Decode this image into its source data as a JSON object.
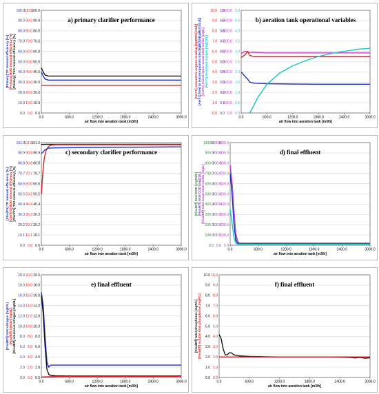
{
  "colors": {
    "blue": "#1f2fc7",
    "red": "#d62020",
    "black": "#111111",
    "grey": "#8a8a8a",
    "cyan": "#16c4c4",
    "magenta": "#cc33cc",
    "green": "#2e8b2e",
    "purple": "#7a3fa0",
    "grid": "#d8d8d8"
  },
  "chart_data": [
    {
      "id": "a",
      "type": "line",
      "title": "a) primary clarifier performance",
      "xlabel": "air flow into aeration tank [m3/h]",
      "xlim": [
        0,
        3000
      ],
      "xticks": [
        "0.0",
        "600.0",
        "1200.0",
        "1800.0",
        "2400.0",
        "3000.0"
      ],
      "ylabels": [
        {
          "text": "[Primary] TP removal efficiency [%]",
          "color": "#1f2fc7"
        },
        {
          "text": "[Primary] BOD removal efficiency [%]",
          "color": "#d62020"
        },
        {
          "text": "[Primary] TSS removal efficiency [%]",
          "color": "#111111"
        }
      ],
      "yaxes": [
        {
          "ticks": [
            "0.0",
            "10.0",
            "20.0",
            "30.0",
            "40.0",
            "50.0",
            "60.0",
            "70.0",
            "80.0",
            "90.0",
            "100.0"
          ],
          "color": "#1f2fc7"
        },
        {
          "ticks": [
            "0.0",
            "10.0",
            "20.0",
            "30.0",
            "40.0",
            "50.0",
            "60.0",
            "70.0",
            "80.0",
            "90.0",
            "100.0"
          ],
          "color": "#d62020"
        },
        {
          "ticks": [
            "0.0",
            "10.0",
            "20.0",
            "30.0",
            "40.0",
            "50.0",
            "60.0",
            "70.0",
            "80.0",
            "90.0",
            "100.0"
          ],
          "color": "#111111"
        }
      ],
      "ylim": [
        0,
        100
      ],
      "grid": true,
      "series": [
        {
          "color": "#111111",
          "x": [
            0,
            40,
            80,
            150,
            250,
            400,
            600,
            1000,
            1500,
            2000,
            2500,
            3000
          ],
          "y": [
            44,
            40,
            37,
            36,
            36,
            36,
            36,
            36,
            36,
            36,
            36,
            36
          ]
        },
        {
          "color": "#1f2fc7",
          "x": [
            0,
            40,
            80,
            150,
            250,
            400,
            600,
            1000,
            1500,
            2000,
            2500,
            3000
          ],
          "y": [
            40,
            36,
            33,
            32,
            32,
            32,
            32,
            32,
            32,
            32,
            32,
            32
          ]
        },
        {
          "color": "#d62020",
          "x": [
            0,
            60,
            150,
            300,
            600,
            1000,
            1500,
            2000,
            2500,
            3000
          ],
          "y": [
            27,
            27,
            27,
            27,
            27,
            27,
            27,
            27,
            27,
            27
          ]
        }
      ]
    },
    {
      "id": "b",
      "type": "line",
      "title": "b) aeration tank operational variables",
      "xlabel": "air flow into aeration tank [m3/h]",
      "xlim": [
        0,
        3000
      ],
      "xticks": [
        "0.0",
        "600.0",
        "1200.0",
        "1800.0",
        "2400.0",
        "3000.0"
      ],
      "ylabels": [
        {
          "text": "[Aer#1] volumetric organic loading [kgBOD/(m3d)]",
          "color": "#d62020"
        },
        {
          "text": "[Aer#1] food to microorganism ratio [kgBOD/(kgMLVSS.d)]",
          "color": "#1f2fc7"
        },
        {
          "text": "[Aer#1] mixed liquor suspended solids [mg/L]",
          "color": "#cc33cc"
        },
        {
          "text": "[Aer#1] dissolved oxygen [mgO2/L]",
          "color": "#16c4c4"
        }
      ],
      "yaxes": [
        {
          "ticks": [
            "0.0",
            "1.0",
            "2.0",
            "3.0",
            "4.0",
            "5.0",
            "6.0",
            "7.0",
            "8.0",
            "9.0",
            "10.0"
          ],
          "color": "#d62020"
        },
        {
          "ticks": [
            "0.0",
            "0.1",
            "0.2",
            "0.3",
            "0.4",
            "0.5",
            "0.6",
            "0.7",
            "0.8",
            "0.9",
            "1.0"
          ],
          "color": "#1f2fc7"
        },
        {
          "ticks": [
            "0.0",
            "500.0",
            "1000.0",
            "1500.0",
            "2000.0",
            "2500.0",
            "3000.0",
            "3500.0",
            "4000.0",
            "4500.0",
            "5000.0"
          ],
          "color": "#cc33cc"
        },
        {
          "ticks": [
            "0.0",
            "0.5",
            "1.0",
            "1.5",
            "2.0",
            "2.5",
            "3.0",
            "3.5",
            "4.0",
            "4.5",
            "5.0"
          ],
          "color": "#16c4c4"
        }
      ],
      "ylim": [
        0,
        100
      ],
      "grid": true,
      "series": [
        {
          "color": "#cc33cc",
          "x": [
            0,
            100,
            200,
            300,
            600,
            1200,
            1800,
            2400,
            3000
          ],
          "y": [
            58,
            60,
            59,
            59,
            58.5,
            58.5,
            58.5,
            58.5,
            58.5
          ]
        },
        {
          "color": "#d62020",
          "x": [
            0,
            100,
            150,
            200,
            300,
            600,
            1200,
            1800,
            2400,
            3000
          ],
          "y": [
            54,
            57,
            60,
            56,
            55,
            55,
            55,
            55,
            55,
            55
          ]
        },
        {
          "color": "#1f2fc7",
          "x": [
            0,
            100,
            150,
            200,
            300,
            600,
            1200,
            1800,
            2400,
            3000
          ],
          "y": [
            40,
            35,
            33,
            30,
            29,
            28.5,
            28.2,
            28,
            28,
            28
          ]
        },
        {
          "color": "#16c4c4",
          "x": [
            200,
            300,
            400,
            500,
            600,
            900,
            1200,
            1500,
            1800,
            2100,
            2400,
            2700,
            3000
          ],
          "y": [
            0,
            8,
            16,
            22,
            28,
            39,
            46,
            51,
            55,
            58,
            60,
            62,
            63
          ]
        }
      ]
    },
    {
      "id": "c",
      "type": "line",
      "title": "c) secondary clarifier performance",
      "xlabel": "air flow into aeration tank [m3/h]",
      "xlim": [
        0,
        3000
      ],
      "xticks": [
        "0.0",
        "600.0",
        "1200.0",
        "1800.0",
        "2400.0",
        "3000.0"
      ],
      "ylabels": [
        {
          "text": "[Clarif#1] TP removal efficiency [%]",
          "color": "#1f2fc7"
        },
        {
          "text": "[Clarif#1] BOD removal efficiency [%]",
          "color": "#d62020"
        },
        {
          "text": "[Clarif#1] TSS removal efficiency [%]",
          "color": "#111111"
        }
      ],
      "yaxes": [
        {
          "ticks": [
            "0.0",
            "10.1",
            "20.2",
            "30.3",
            "40.4",
            "50.5",
            "60.6",
            "70.7",
            "80.8",
            "90.9",
            "101.0"
          ],
          "color": "#1f2fc7"
        },
        {
          "ticks": [
            "0.0",
            "10.1",
            "20.2",
            "30.3",
            "40.4",
            "50.5",
            "60.6",
            "70.7",
            "80.8",
            "90.9",
            "101.0"
          ],
          "color": "#d62020"
        },
        {
          "ticks": [
            "0.0",
            "10.1",
            "20.2",
            "30.3",
            "40.4",
            "50.5",
            "60.6",
            "70.7",
            "80.8",
            "90.9",
            "101.0"
          ],
          "color": "#111111"
        }
      ],
      "ylim": [
        0,
        101
      ],
      "grid": true,
      "series": [
        {
          "color": "#111111",
          "x": [
            0,
            100,
            200,
            400,
            800,
            1500,
            2200,
            3000
          ],
          "y": [
            99.2,
            99.3,
            99.4,
            99.4,
            99.4,
            99.4,
            99.4,
            99.4
          ]
        },
        {
          "color": "#d62020",
          "x": [
            0,
            30,
            60,
            100,
            150,
            200,
            300,
            500,
            1000,
            2000,
            3000
          ],
          "y": [
            50,
            70,
            85,
            93,
            97,
            98.5,
            99,
            99,
            99,
            99,
            99
          ]
        },
        {
          "color": "#1f2fc7",
          "x": [
            0,
            80,
            150,
            300,
            600,
            1200,
            1800,
            2400,
            3000
          ],
          "y": [
            90,
            94,
            95.5,
            95.8,
            96,
            96.2,
            96.4,
            96.6,
            96.8
          ]
        }
      ]
    },
    {
      "id": "d",
      "type": "line",
      "title": "d) final effluent",
      "xlabel": "air flow into aeration tank [m3/h]",
      "xlim": [
        0,
        3000
      ],
      "xticks": [
        "0.0",
        "600.0",
        "1200.0",
        "1800.0",
        "2400.0",
        "3000.0"
      ],
      "ylabels": [
        {
          "text": "[FinalEff] total BOD [mgO2/L]",
          "color": "#2e8b2e"
        },
        {
          "text": "[FinalEff] total COD [mgO2/L]",
          "color": "#7a3fa0"
        },
        {
          "text": "[FinalEff] total suspended solids [mg/L]",
          "color": "#cc33cc"
        }
      ],
      "yaxes": [
        {
          "ticks": [
            "0.0",
            "100.0",
            "200.0",
            "300.0",
            "400.0",
            "500.0",
            "600.0",
            "700.0",
            "800.0",
            "900.0",
            "1000.0"
          ],
          "color": "#2e8b2e"
        },
        {
          "ticks": [
            "0.0",
            "100.0",
            "200.0",
            "300.0",
            "400.0",
            "500.0",
            "600.0",
            "700.0",
            "800.0",
            "900.0",
            "1000.0"
          ],
          "color": "#7a3fa0"
        },
        {
          "ticks": [
            "0.0",
            "100.0",
            "200.0",
            "300.0",
            "400.0",
            "500.0",
            "600.0",
            "700.0",
            "800.0",
            "900.0",
            "1000.0"
          ],
          "color": "#cc33cc"
        }
      ],
      "ylim": [
        0,
        100
      ],
      "grid": true,
      "series": [
        {
          "color": "#cc33cc",
          "x": [
            0,
            40,
            80,
            120,
            160,
            200,
            300,
            600,
            3000
          ],
          "y": [
            78,
            62,
            35,
            12,
            4,
            2,
            2,
            2,
            2
          ]
        },
        {
          "color": "#8a8a8a",
          "x": [
            0,
            40,
            80,
            120,
            160,
            200,
            300,
            600,
            3000
          ],
          "y": [
            72,
            55,
            28,
            8,
            3,
            2,
            2,
            2,
            2
          ]
        },
        {
          "color": "#1f2fc7",
          "x": [
            0,
            40,
            80,
            120,
            160,
            200,
            300,
            600,
            3000
          ],
          "y": [
            70,
            50,
            22,
            5,
            2,
            1.5,
            1.5,
            1.5,
            1.5
          ]
        },
        {
          "color": "#16c4c4",
          "x": [
            0,
            40,
            80,
            120,
            160,
            200,
            300,
            600,
            3000
          ],
          "y": [
            35,
            22,
            8,
            2,
            1,
            1,
            1,
            1,
            1
          ]
        }
      ]
    },
    {
      "id": "e",
      "type": "line",
      "title": "e) final effluent",
      "xlabel": "air flow into aeration tank [m3/h]",
      "xlim": [
        0,
        3000
      ],
      "xticks": [
        "0.0",
        "600.0",
        "1200.0",
        "1800.0",
        "2400.0",
        "3000.0"
      ],
      "ylabels": [
        {
          "text": "[FinalEff] total nitrogen [mgN/L]",
          "color": "#1f2fc7"
        },
        {
          "text": "[FinalEff] nitrate [mgN/L]",
          "color": "#d62020"
        },
        {
          "text": "[FinalEff] ammonia nitrogen [mgN/L]",
          "color": "#111111"
        }
      ],
      "yaxes": [
        {
          "ticks": [
            "0.0",
            "2.0",
            "4.0",
            "6.0",
            "8.0",
            "10.0",
            "12.0",
            "14.0",
            "16.0",
            "18.0",
            "20.0"
          ],
          "color": "#1f2fc7"
        },
        {
          "ticks": [
            "0.0",
            "2.0",
            "4.0",
            "6.0",
            "8.0",
            "10.0",
            "12.0",
            "14.0",
            "16.0",
            "18.0",
            "20.0"
          ],
          "color": "#d62020"
        },
        {
          "ticks": [
            "0.0",
            "2.0",
            "4.0",
            "6.0",
            "8.0",
            "10.0",
            "12.0",
            "14.0",
            "16.0",
            "18.0",
            "20.0"
          ],
          "color": "#111111"
        }
      ],
      "ylim": [
        0,
        100
      ],
      "grid": true,
      "series": [
        {
          "color": "#1f2fc7",
          "x": [
            0,
            40,
            80,
            120,
            160,
            200,
            300,
            600,
            1200,
            1800,
            2400,
            3000
          ],
          "y": [
            83,
            70,
            40,
            15,
            10,
            12,
            12,
            12,
            12,
            12,
            12,
            12
          ]
        },
        {
          "color": "#111111",
          "x": [
            0,
            40,
            80,
            120,
            160,
            200,
            300,
            600,
            1200,
            3000
          ],
          "y": [
            80,
            62,
            30,
            8,
            3,
            2,
            1.6,
            1.5,
            1.5,
            1.5
          ]
        },
        {
          "color": "#d62020",
          "x": [
            0,
            100,
            200,
            400,
            800,
            1600,
            3000
          ],
          "y": [
            0.5,
            0.6,
            0.8,
            1,
            1,
            1,
            1
          ]
        }
      ]
    },
    {
      "id": "f",
      "type": "line",
      "title": "f) final effluent",
      "xlabel": "air flow into aeration tank [m3/h]",
      "xlim": [
        0,
        3000
      ],
      "xticks": [
        "0.0",
        "600.0",
        "1200.0",
        "1800.0",
        "2400.0",
        "3000.0"
      ],
      "ylabels": [
        {
          "text": "[FinalEff] total phosphorus [mgP/L]",
          "color": "#111111"
        },
        {
          "text": "[FinalEff] soluble total phosphorus [mgP/L]",
          "color": "#d62020"
        }
      ],
      "yaxes": [
        {
          "ticks": [
            "0.0",
            "1.0",
            "2.0",
            "3.0",
            "4.0",
            "5.0",
            "6.0",
            "7.0",
            "8.0",
            "9.0",
            "10.0"
          ],
          "color": "#111111"
        },
        {
          "ticks": [
            "0.0",
            "1.0",
            "2.0",
            "3.0",
            "4.0",
            "5.0",
            "6.0",
            "7.0",
            "8.0",
            "9.0",
            "10.0"
          ],
          "color": "#d62020"
        }
      ],
      "ylim": [
        0,
        100
      ],
      "grid": true,
      "series": [
        {
          "color": "#111111",
          "x": [
            0,
            40,
            80,
            120,
            160,
            200,
            240,
            300,
            400,
            600,
            900,
            1200,
            1500,
            1800,
            2100,
            2400,
            2600,
            2700,
            2800,
            2900,
            3000
          ],
          "y": [
            42,
            38,
            28,
            22,
            22,
            24,
            24,
            22,
            21,
            20.5,
            20.2,
            20,
            20,
            20,
            20,
            19.8,
            19.5,
            19,
            19.5,
            18.8,
            19.2
          ]
        },
        {
          "color": "#d62020",
          "x": [
            0,
            100,
            200,
            400,
            800,
            1600,
            3000
          ],
          "y": [
            20,
            20,
            20,
            20,
            20,
            20,
            20
          ]
        }
      ]
    }
  ]
}
